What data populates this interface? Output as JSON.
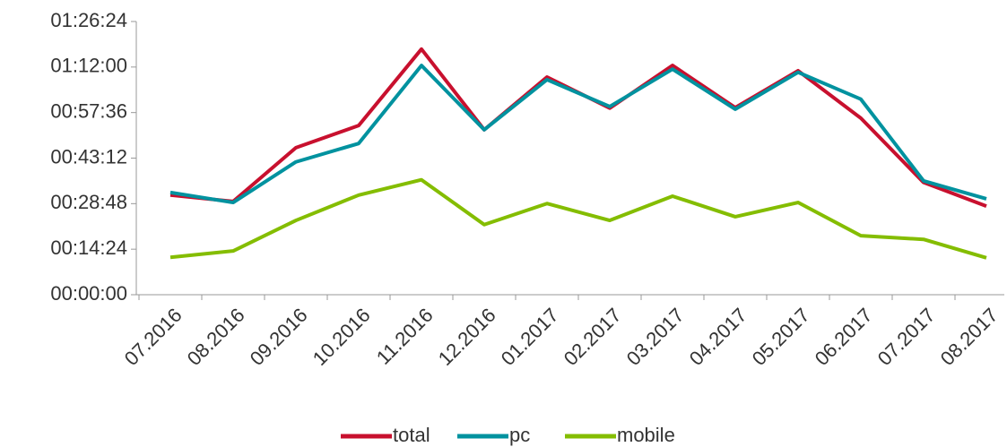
{
  "chart_data": {
    "type": "line",
    "categories": [
      "07.2016",
      "08.2016",
      "09.2016",
      "10.2016",
      "11.2016",
      "12.2016",
      "01.2017",
      "02.2017",
      "03.2017",
      "04.2017",
      "05.2017",
      "06.2017",
      "07.2017",
      "08.2017"
    ],
    "series": [
      {
        "name": "total",
        "color": "#c8102e",
        "values": [
          1890,
          1770,
          2790,
          3210,
          4660,
          3130,
          4130,
          3540,
          4350,
          3550,
          4250,
          3350,
          2130,
          1680
        ]
      },
      {
        "name": "pc",
        "color": "#00929f",
        "values": [
          1940,
          1750,
          2520,
          2870,
          4350,
          3130,
          4080,
          3570,
          4280,
          3520,
          4220,
          3710,
          2160,
          1820
        ]
      },
      {
        "name": "mobile",
        "color": "#84bd00",
        "values": [
          710,
          830,
          1410,
          1890,
          2180,
          1330,
          1730,
          1410,
          1870,
          1480,
          1750,
          1120,
          1050,
          700
        ]
      }
    ],
    "ylim": [
      0,
      5184
    ],
    "yticks": [
      {
        "value": 0,
        "label": "00:00:00"
      },
      {
        "value": 864,
        "label": "00:14:24"
      },
      {
        "value": 1728,
        "label": "00:28:48"
      },
      {
        "value": 2592,
        "label": "00:43:12"
      },
      {
        "value": 3456,
        "label": "00:57:36"
      },
      {
        "value": 4320,
        "label": "01:12:00"
      },
      {
        "value": 5184,
        "label": "01:26:24"
      }
    ],
    "grid": false,
    "legend": "bottom"
  }
}
